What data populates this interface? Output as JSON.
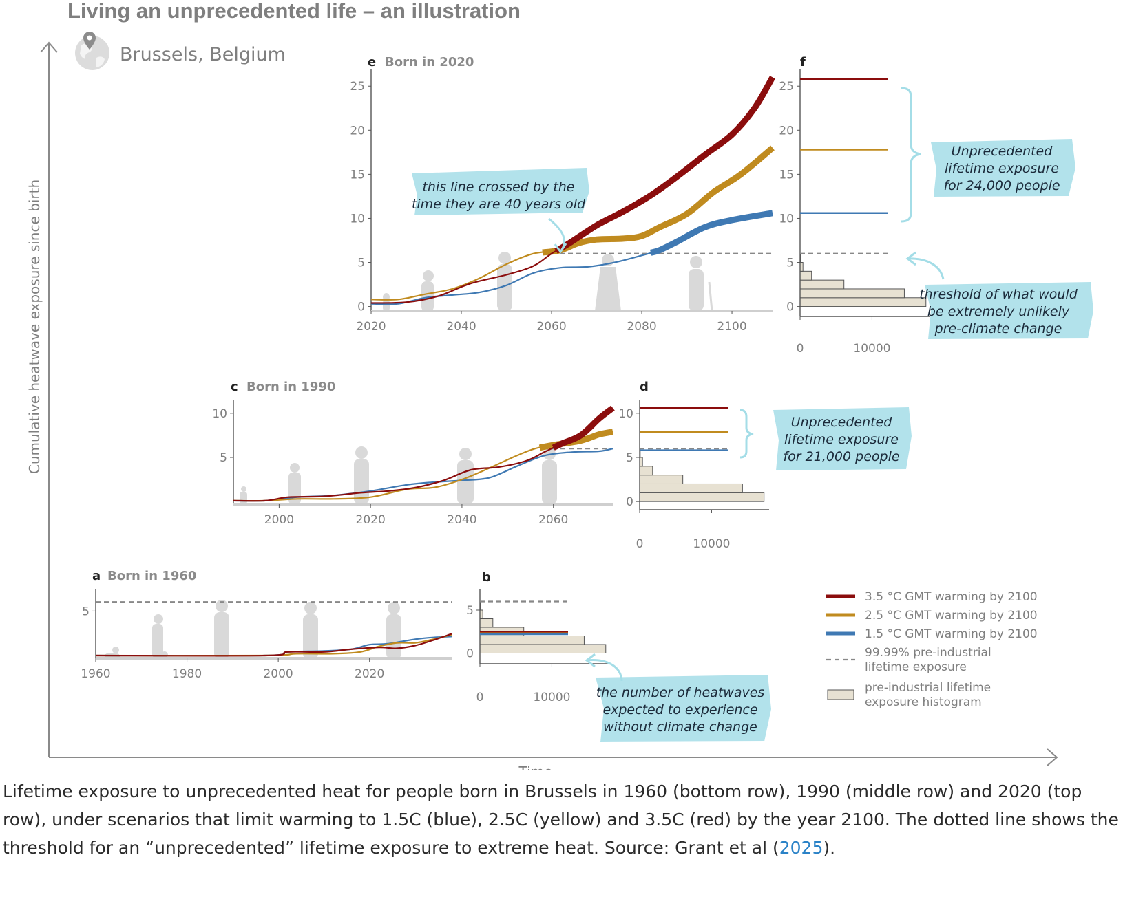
{
  "header": {
    "title": "Living an unprecedented life – an illustration",
    "location": "Brussels, Belgium"
  },
  "axes": {
    "y_label": "Cumulative heatwave exposure since birth",
    "x_label": "Time"
  },
  "colors": {
    "red": "#8b0d0d",
    "yellow": "#c08b1f",
    "blue": "#3f79b3",
    "threshold": "#888888",
    "histogram": "#e7e1d2",
    "annotation_bg": "#a4dde7",
    "silhouette": "#d9d9d9"
  },
  "chart_data": [
    {
      "panel": "e",
      "title": "Born in 2020",
      "type": "line",
      "xlim": [
        2020,
        2109
      ],
      "ylim": [
        -0.5,
        26.5
      ],
      "x_ticks": [
        "2020",
        "2040",
        "2060",
        "2080",
        "2100"
      ],
      "y_ticks": [
        "0",
        "5",
        "10",
        "15",
        "20",
        "25"
      ],
      "threshold": 6,
      "series": [
        {
          "name": "3.5 °C GMT warming by 2100",
          "color": "red",
          "x": [
            2020,
            2028,
            2035,
            2042,
            2050,
            2056,
            2060,
            2064,
            2070,
            2076,
            2082,
            2088,
            2094,
            2100,
            2105,
            2109
          ],
          "y": [
            0.4,
            0.5,
            1.2,
            2.6,
            3.6,
            4.6,
            6.0,
            7.2,
            9.2,
            10.8,
            12.6,
            14.8,
            17.2,
            19.5,
            22.5,
            26.0
          ],
          "bold_from": 2061
        },
        {
          "name": "2.5 °C GMT warming by 2100",
          "color": "yellow",
          "x": [
            2020,
            2026,
            2032,
            2038,
            2044,
            2050,
            2056,
            2062,
            2066,
            2070,
            2076,
            2080,
            2084,
            2090,
            2096,
            2102,
            2109
          ],
          "y": [
            0.8,
            0.8,
            1.4,
            2.0,
            3.2,
            4.8,
            6.0,
            6.4,
            7.2,
            7.6,
            7.7,
            8.0,
            9.0,
            10.5,
            13.0,
            15.0,
            18.0
          ],
          "bold_from": 2058
        },
        {
          "name": "1.5 °C GMT warming by 2100",
          "color": "blue",
          "x": [
            2020,
            2026,
            2032,
            2038,
            2044,
            2050,
            2056,
            2062,
            2068,
            2074,
            2080,
            2084,
            2088,
            2094,
            2100,
            2109
          ],
          "y": [
            0.3,
            0.3,
            1.0,
            1.3,
            1.6,
            2.4,
            3.8,
            4.4,
            4.5,
            5.0,
            5.8,
            6.4,
            7.4,
            9.0,
            9.8,
            10.6
          ],
          "bold_from": 2082
        }
      ],
      "annotation": [
        "this line crossed by the",
        "time they are 40 years old"
      ]
    },
    {
      "panel": "f",
      "type": "bar",
      "orientation": "horizontal",
      "x_ticks": [
        "0",
        "10000"
      ],
      "xlim": [
        0,
        18000
      ],
      "y_ticks": [
        "0",
        "5",
        "10",
        "15",
        "20",
        "25"
      ],
      "ylim": [
        -0.5,
        26.5
      ],
      "hist_bins": [
        0,
        1,
        2,
        3,
        4,
        5
      ],
      "hist_counts": [
        17500,
        14500,
        6100,
        1600,
        400,
        80
      ],
      "levels": {
        "red": 25.8,
        "yellow": 17.8,
        "blue": 10.6,
        "threshold": 6
      },
      "annotation": [
        "Unprecedented",
        "lifetime exposure",
        "for 24,000 people"
      ],
      "threshold_note": [
        "threshold of what would",
        "be extremely unlikely",
        "pre-climate change"
      ]
    },
    {
      "panel": "c",
      "title": "Born in 1990",
      "type": "line",
      "xlim": [
        1990,
        2073
      ],
      "ylim": [
        -0.3,
        11.0
      ],
      "x_ticks": [
        "2000",
        "2020",
        "2040",
        "2060"
      ],
      "y_ticks": [
        "5",
        "10"
      ],
      "threshold": 6,
      "series": [
        {
          "name": "3.5 °C GMT warming by 2100",
          "color": "red",
          "x": [
            1990,
            1997,
            2002,
            2010,
            2018,
            2024,
            2030,
            2036,
            2042,
            2048,
            2054,
            2058,
            2062,
            2066,
            2070,
            2073
          ],
          "y": [
            0.1,
            0.1,
            0.5,
            0.6,
            1.0,
            1.2,
            1.6,
            2.4,
            3.6,
            3.9,
            4.6,
            5.6,
            6.6,
            7.5,
            9.4,
            10.6
          ],
          "bold_from": 2060
        },
        {
          "name": "2.5 °C GMT warming by 2100",
          "color": "yellow",
          "x": [
            1990,
            1997,
            2004,
            2012,
            2020,
            2028,
            2034,
            2040,
            2046,
            2052,
            2056,
            2060,
            2066,
            2070,
            2073
          ],
          "y": [
            0.1,
            0.1,
            0.3,
            0.3,
            0.5,
            1.4,
            1.6,
            2.5,
            3.8,
            5.2,
            6.0,
            6.4,
            6.9,
            7.6,
            7.9
          ],
          "bold_from": 2057
        },
        {
          "name": "1.5 °C GMT warming by 2100",
          "color": "blue",
          "x": [
            1990,
            1997,
            2004,
            2012,
            2020,
            2028,
            2034,
            2040,
            2046,
            2052,
            2058,
            2064,
            2070,
            2073
          ],
          "y": [
            0.1,
            0.1,
            0.5,
            0.7,
            1.2,
            1.9,
            2.2,
            2.4,
            2.7,
            4.0,
            5.2,
            5.6,
            5.7,
            6.0
          ]
        }
      ]
    },
    {
      "panel": "d",
      "type": "bar",
      "orientation": "horizontal",
      "x_ticks": [
        "0",
        "10000"
      ],
      "xlim": [
        0,
        18000
      ],
      "y_ticks": [
        "0",
        "5",
        "10"
      ],
      "ylim": [
        -0.3,
        11.0
      ],
      "hist_bins": [
        0,
        1,
        2,
        3,
        4,
        5
      ],
      "hist_counts": [
        17300,
        14300,
        6000,
        1800,
        400,
        80
      ],
      "levels": {
        "red": 10.6,
        "yellow": 7.9,
        "blue": 5.8,
        "threshold": 6
      },
      "annotation": [
        "Unprecedented",
        "lifetime exposure",
        "for 21,000 people"
      ]
    },
    {
      "panel": "a",
      "title": "Born in 1960",
      "type": "line",
      "xlim": [
        1960,
        2038
      ],
      "ylim": [
        -0.2,
        7.0
      ],
      "x_ticks": [
        "1960",
        "1980",
        "2000",
        "2020"
      ],
      "y_ticks": [
        "5"
      ],
      "threshold": 6,
      "series": [
        {
          "name": "3.5 °C GMT warming by 2100",
          "color": "red",
          "x": [
            1960,
            1997,
            2002,
            2010,
            2016,
            2022,
            2026,
            2030,
            2034,
            2038
          ],
          "y": [
            0.1,
            0.1,
            0.5,
            0.5,
            0.8,
            1.0,
            0.9,
            1.2,
            1.8,
            2.5
          ]
        },
        {
          "name": "2.5 °C GMT warming by 2100",
          "color": "yellow",
          "x": [
            1960,
            1997,
            2004,
            2012,
            2018,
            2022,
            2026,
            2030,
            2034,
            2038
          ],
          "y": [
            0.1,
            0.1,
            0.3,
            0.3,
            0.5,
            1.1,
            1.5,
            1.5,
            1.9,
            2.4
          ]
        },
        {
          "name": "1.5 °C GMT warming by 2100",
          "color": "blue",
          "x": [
            1960,
            1997,
            2002,
            2010,
            2016,
            2020,
            2024,
            2030,
            2034,
            2038
          ],
          "y": [
            0.1,
            0.1,
            0.5,
            0.6,
            0.8,
            1.3,
            1.4,
            1.9,
            2.1,
            2.2
          ]
        }
      ]
    },
    {
      "panel": "b",
      "type": "bar",
      "orientation": "horizontal",
      "x_ticks": [
        "0",
        "10000"
      ],
      "xlim": [
        0,
        18000
      ],
      "y_ticks": [
        "0",
        "5"
      ],
      "ylim": [
        -0.6,
        7.0
      ],
      "hist_bins": [
        0,
        1,
        2,
        3,
        4,
        5
      ],
      "hist_counts": [
        17500,
        14500,
        6100,
        1800,
        400,
        80
      ],
      "levels": {
        "red": 2.5,
        "yellow": 2.4,
        "blue": 2.2,
        "threshold": 6
      },
      "annotation": [
        "the number of heatwaves",
        "expected to experience",
        "without climate change"
      ]
    }
  ],
  "legend": [
    {
      "kind": "line",
      "color": "red",
      "label": [
        "3.5 °C GMT warming by 2100"
      ]
    },
    {
      "kind": "line",
      "color": "yellow",
      "label": [
        "2.5 °C GMT warming by 2100"
      ]
    },
    {
      "kind": "line",
      "color": "blue",
      "label": [
        "1.5 °C GMT warming by 2100"
      ]
    },
    {
      "kind": "dash",
      "color": "threshold",
      "label": [
        "99.99% pre-industrial",
        "lifetime exposure"
      ]
    },
    {
      "kind": "box",
      "color": "histogram",
      "label": [
        "pre-industrial lifetime",
        "exposure histogram"
      ]
    }
  ],
  "caption": {
    "text": "Lifetime exposure to unprecedented heat for people born in Brussels in 1960 (bottom row), 1990 (middle row) and 2020 (top row), under scenarios that limit warming to 1.5C (blue), 2.5C (yellow) and 3.5C (red) by the year 2100. The dotted line shows the threshold for an “unprecedented” lifetime exposure to extreme heat. Source: Grant et al (",
    "link": "2025",
    "end": ")."
  }
}
